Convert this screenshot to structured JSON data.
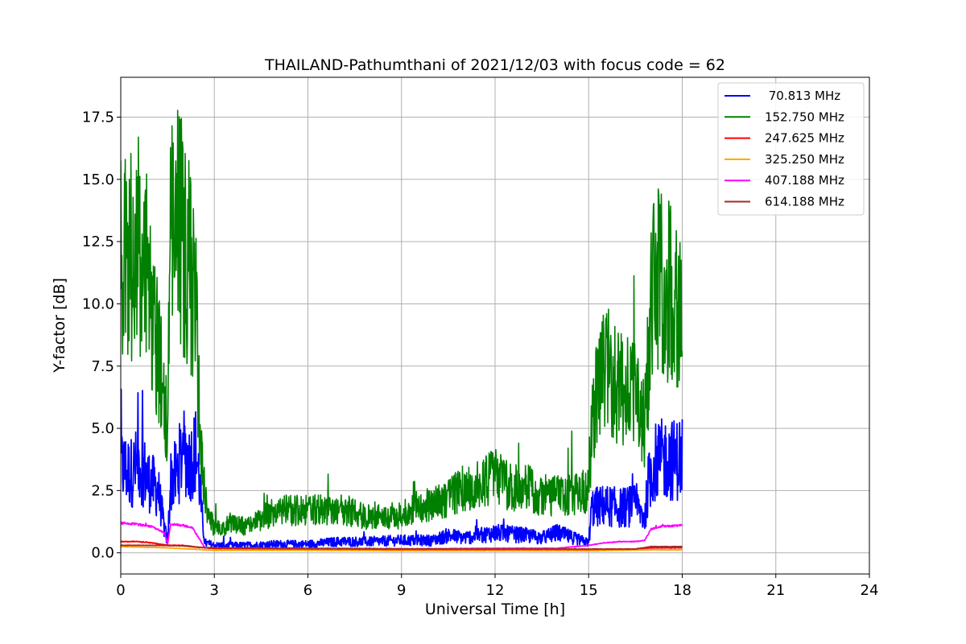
{
  "chart_data": {
    "type": "line",
    "title": "THAILAND-Pathumthani of 2021/12/03 with focus code = 62",
    "xlabel": "Universal Time [h]",
    "ylabel": "Y-factor [dB]",
    "xlim": [
      0,
      24
    ],
    "ylim": [
      -0.85,
      19.1
    ],
    "xticks": [
      0,
      3,
      6,
      9,
      12,
      15,
      18,
      21,
      24
    ],
    "xtick_labels": [
      "0",
      "3",
      "6",
      "9",
      "12",
      "15",
      "18",
      "21",
      "24"
    ],
    "yticks": [
      0,
      2.5,
      5,
      7.5,
      10,
      12.5,
      15,
      17.5
    ],
    "ytick_labels": [
      "0.0",
      "2.5",
      "5.0",
      "7.5",
      "10.0",
      "12.5",
      "15.0",
      "17.5"
    ],
    "grid": true,
    "legend_position": "top-right",
    "series": [
      {
        "name": " 70.813 MHz",
        "color": "#0000ff",
        "points": [
          [
            0,
            3.5
          ],
          [
            0.3,
            3.2
          ],
          [
            0.6,
            3.6
          ],
          [
            0.9,
            2.9
          ],
          [
            1.2,
            2.5
          ],
          [
            1.4,
            1.0
          ],
          [
            1.5,
            0.4
          ],
          [
            1.6,
            2.9
          ],
          [
            1.8,
            3.2
          ],
          [
            2.0,
            4.2
          ],
          [
            2.2,
            3.6
          ],
          [
            2.4,
            4.1
          ],
          [
            2.5,
            3.2
          ],
          [
            2.6,
            1.5
          ],
          [
            2.7,
            0.4
          ],
          [
            3.0,
            0.3
          ],
          [
            3.5,
            0.3
          ],
          [
            4.0,
            0.3
          ],
          [
            5.0,
            0.35
          ],
          [
            6.0,
            0.35
          ],
          [
            7.0,
            0.45
          ],
          [
            8.0,
            0.45
          ],
          [
            9.0,
            0.5
          ],
          [
            10.0,
            0.5
          ],
          [
            10.5,
            0.7
          ],
          [
            11.0,
            0.6
          ],
          [
            12.0,
            0.8
          ],
          [
            13.0,
            0.7
          ],
          [
            13.5,
            0.6
          ],
          [
            14.0,
            0.8
          ],
          [
            14.5,
            0.6
          ],
          [
            15.0,
            0.4
          ],
          [
            15.1,
            1.8
          ],
          [
            15.5,
            1.9
          ],
          [
            16.0,
            1.8
          ],
          [
            16.5,
            1.9
          ],
          [
            16.8,
            1.4
          ],
          [
            16.9,
            2.7
          ],
          [
            17.1,
            3.6
          ],
          [
            17.5,
            3.8
          ],
          [
            17.8,
            3.7
          ],
          [
            18.0,
            3.9
          ]
        ]
      },
      {
        "name": "152.750 MHz",
        "color": "#008000",
        "points": [
          [
            0,
            12.0
          ],
          [
            0.2,
            11.5
          ],
          [
            0.5,
            12.5
          ],
          [
            0.8,
            11.5
          ],
          [
            1.0,
            9.5
          ],
          [
            1.2,
            8.0
          ],
          [
            1.4,
            6.0
          ],
          [
            1.5,
            4.5
          ],
          [
            1.6,
            12.5
          ],
          [
            1.8,
            13.5
          ],
          [
            2.0,
            12.5
          ],
          [
            2.2,
            11.5
          ],
          [
            2.4,
            10.0
          ],
          [
            2.5,
            6.0
          ],
          [
            2.6,
            3.5
          ],
          [
            2.8,
            1.5
          ],
          [
            3.0,
            1.0
          ],
          [
            3.5,
            1.1
          ],
          [
            4.0,
            1.1
          ],
          [
            5.0,
            1.7
          ],
          [
            6.0,
            1.7
          ],
          [
            7.0,
            1.8
          ],
          [
            8.0,
            1.4
          ],
          [
            9.0,
            1.5
          ],
          [
            9.5,
            1.9
          ],
          [
            10.0,
            1.9
          ],
          [
            10.5,
            2.2
          ],
          [
            11.0,
            2.6
          ],
          [
            11.5,
            2.7
          ],
          [
            12.0,
            3.1
          ],
          [
            12.5,
            2.6
          ],
          [
            13.0,
            2.7
          ],
          [
            13.5,
            2.3
          ],
          [
            14.0,
            2.3
          ],
          [
            14.5,
            2.3
          ],
          [
            15.0,
            2.5
          ],
          [
            15.2,
            6.0
          ],
          [
            15.5,
            7.5
          ],
          [
            16.0,
            6.5
          ],
          [
            16.5,
            6.8
          ],
          [
            16.8,
            5.0
          ],
          [
            17.0,
            10.0
          ],
          [
            17.3,
            11.5
          ],
          [
            17.5,
            10.5
          ],
          [
            17.8,
            9.8
          ],
          [
            18.0,
            9.5
          ]
        ]
      },
      {
        "name": "247.625 MHz",
        "color": "#ff0000",
        "points": [
          [
            0,
            0.45
          ],
          [
            0.5,
            0.45
          ],
          [
            1.0,
            0.4
          ],
          [
            1.5,
            0.3
          ],
          [
            2.0,
            0.3
          ],
          [
            2.5,
            0.22
          ],
          [
            3.0,
            0.18
          ],
          [
            6.0,
            0.15
          ],
          [
            9.0,
            0.12
          ],
          [
            12.0,
            0.12
          ],
          [
            15.0,
            0.12
          ],
          [
            16.5,
            0.14
          ],
          [
            17.0,
            0.2
          ],
          [
            18.0,
            0.2
          ]
        ]
      },
      {
        "name": "325.250 MHz",
        "color": "#ffa500",
        "points": [
          [
            0,
            0.25
          ],
          [
            1.5,
            0.2
          ],
          [
            3.0,
            0.1
          ],
          [
            6.0,
            0.1
          ],
          [
            9.0,
            0.08
          ],
          [
            12.0,
            0.08
          ],
          [
            15.0,
            0.08
          ],
          [
            17.0,
            0.12
          ],
          [
            18.0,
            0.12
          ]
        ]
      },
      {
        "name": "407.188 MHz",
        "color": "#ff00ff",
        "points": [
          [
            0,
            1.2
          ],
          [
            0.5,
            1.15
          ],
          [
            1.0,
            1.05
          ],
          [
            1.4,
            0.8
          ],
          [
            1.5,
            0.35
          ],
          [
            1.6,
            1.15
          ],
          [
            2.0,
            1.1
          ],
          [
            2.3,
            1.0
          ],
          [
            2.5,
            0.6
          ],
          [
            2.7,
            0.2
          ],
          [
            3.0,
            0.18
          ],
          [
            6.0,
            0.15
          ],
          [
            9.0,
            0.15
          ],
          [
            12.0,
            0.18
          ],
          [
            14.0,
            0.18
          ],
          [
            15.0,
            0.3
          ],
          [
            15.5,
            0.4
          ],
          [
            16.0,
            0.45
          ],
          [
            16.5,
            0.45
          ],
          [
            16.8,
            0.5
          ],
          [
            17.0,
            0.95
          ],
          [
            17.3,
            1.05
          ],
          [
            18.0,
            1.1
          ]
        ]
      },
      {
        "name": "614.188 MHz",
        "color": "#a52a2a",
        "points": [
          [
            0,
            0.3
          ],
          [
            1.0,
            0.3
          ],
          [
            2.0,
            0.28
          ],
          [
            2.5,
            0.22
          ],
          [
            3.0,
            0.2
          ],
          [
            6.0,
            0.18
          ],
          [
            9.0,
            0.16
          ],
          [
            12.0,
            0.15
          ],
          [
            15.0,
            0.15
          ],
          [
            16.5,
            0.15
          ],
          [
            17.0,
            0.25
          ],
          [
            17.5,
            0.25
          ],
          [
            18.0,
            0.25
          ]
        ]
      }
    ]
  }
}
